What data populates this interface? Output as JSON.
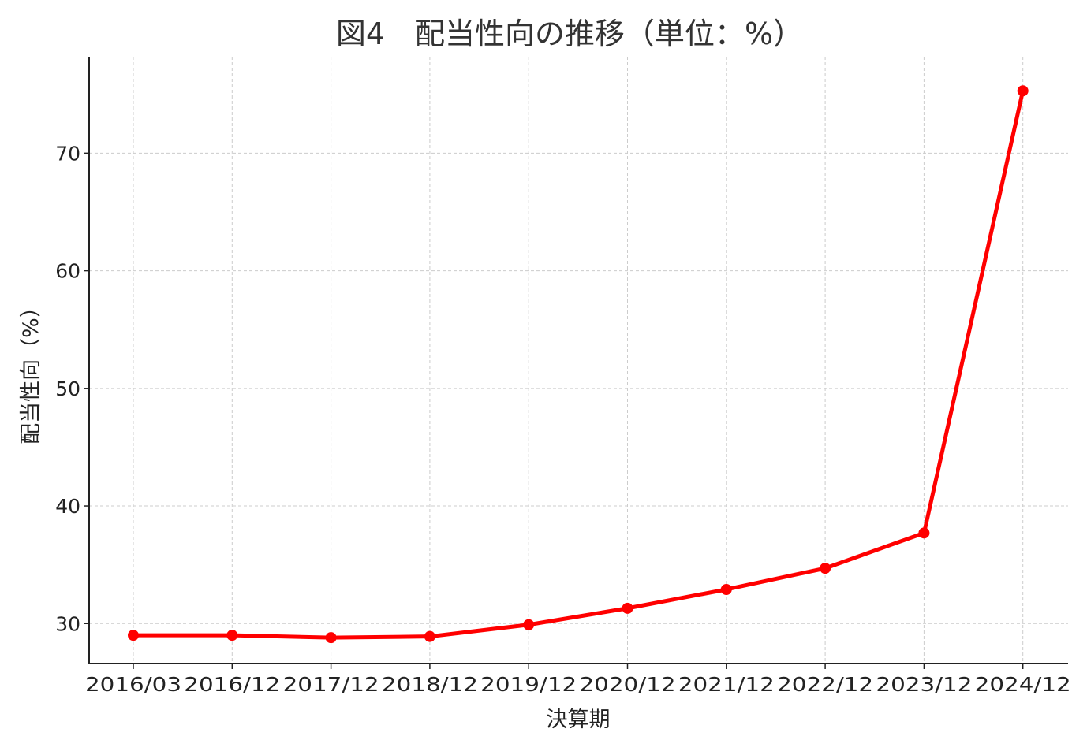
{
  "chart_data": {
    "type": "line",
    "title": "図4　配当性向の推移（単位：%）",
    "xlabel": "決算期",
    "ylabel": "配当性向（%）",
    "categories": [
      "2016/03",
      "2016/12",
      "2017/12",
      "2018/12",
      "2019/12",
      "2020/12",
      "2021/12",
      "2022/12",
      "2023/12",
      "2024/12"
    ],
    "series": [
      {
        "values": [
          29.0,
          29.0,
          28.8,
          28.9,
          29.9,
          31.3,
          32.9,
          34.7,
          37.7,
          75.3
        ],
        "color": "#ff0000"
      }
    ],
    "ylim": [
      26.6,
      78.2
    ],
    "yticks": [
      30,
      40,
      50,
      60,
      70
    ],
    "grid": true
  }
}
